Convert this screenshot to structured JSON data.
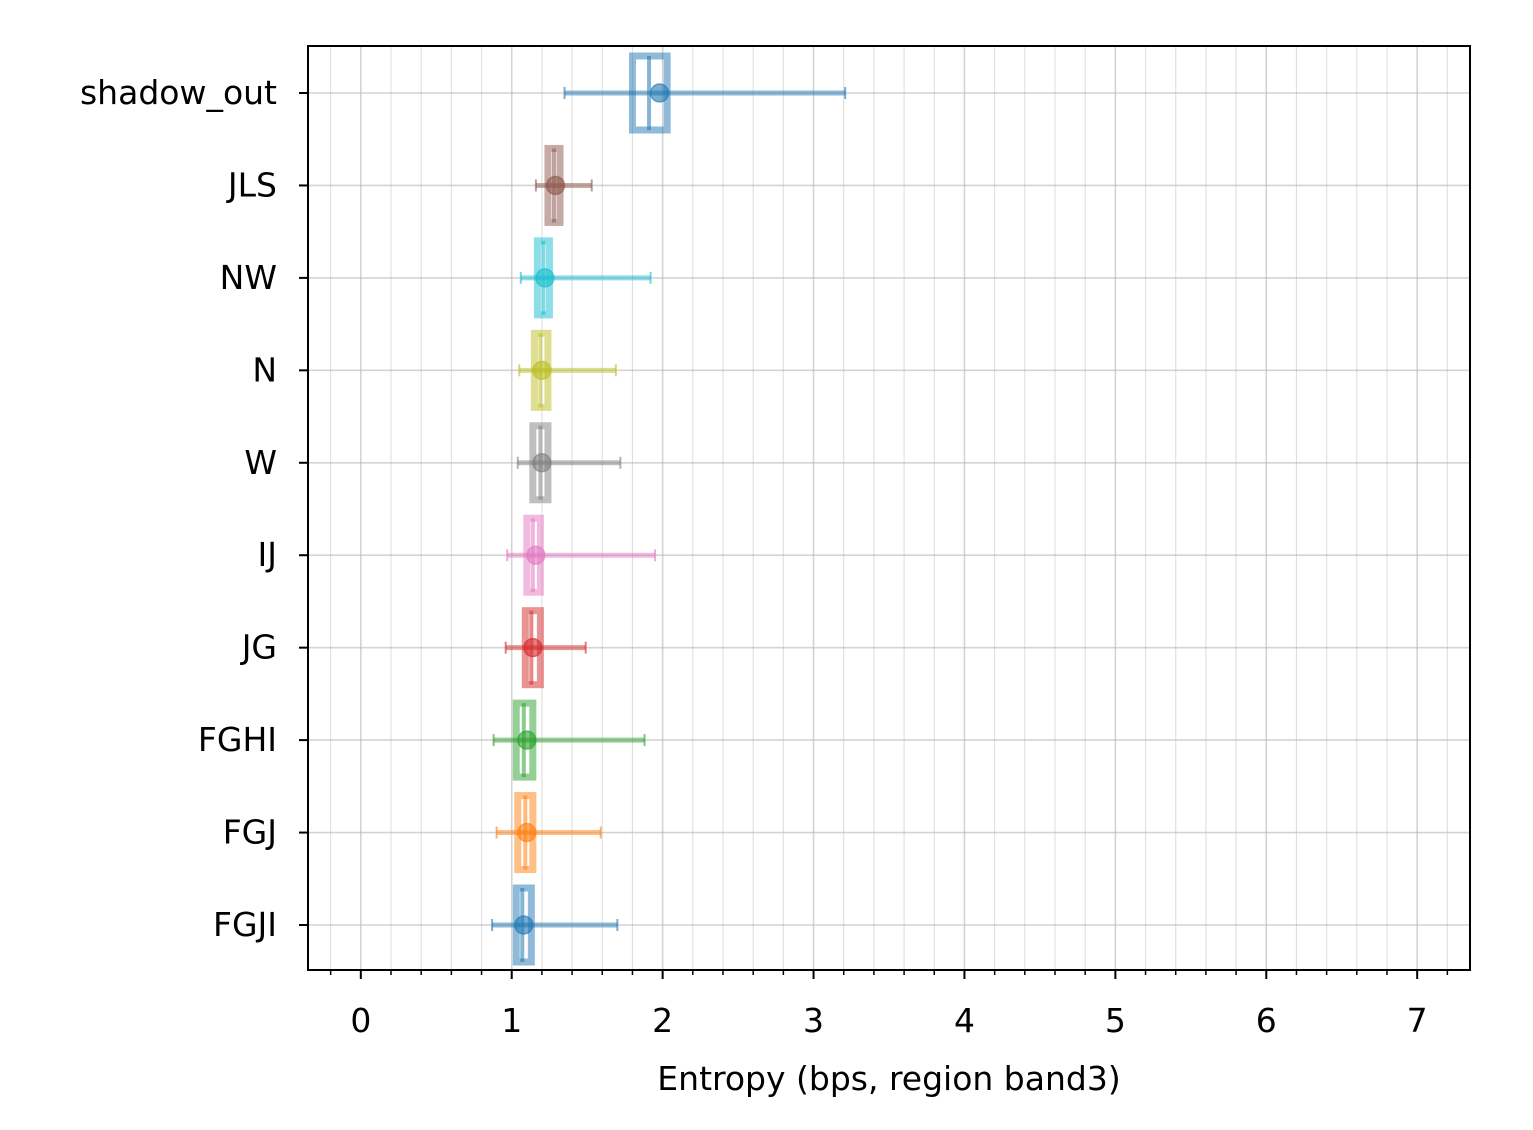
{
  "chart_data": {
    "type": "errorbar-box",
    "xlabel": "Entropy (bps, region band3)",
    "ylabel": "",
    "xlim": [
      -0.35,
      7.35
    ],
    "xticks": [
      "0",
      "1",
      "2",
      "3",
      "4",
      "5",
      "6",
      "7"
    ],
    "grid": "on (major and minor)",
    "categories": [
      "FGJI",
      "FGJ",
      "FGHI",
      "JG",
      "IJ",
      "W",
      "N",
      "NW",
      "JLS",
      "shadow_out"
    ],
    "series": [
      {
        "category": "FGJI",
        "color": "#1f77b4",
        "mean": 1.08,
        "err_low": 0.87,
        "err_high": 1.7,
        "box_low": 1.03,
        "box_high": 1.13,
        "median": 1.07
      },
      {
        "category": "FGJ",
        "color": "#ff7f0e",
        "mean": 1.1,
        "err_low": 0.9,
        "err_high": 1.59,
        "box_low": 1.04,
        "box_high": 1.14,
        "median": 1.09
      },
      {
        "category": "FGHI",
        "color": "#2ca02c",
        "mean": 1.1,
        "err_low": 0.88,
        "err_high": 1.88,
        "box_low": 1.03,
        "box_high": 1.14,
        "median": 1.08
      },
      {
        "category": "JG",
        "color": "#d62728",
        "mean": 1.14,
        "err_low": 0.96,
        "err_high": 1.49,
        "box_low": 1.09,
        "box_high": 1.19,
        "median": 1.13
      },
      {
        "category": "IJ",
        "color": "#e377c2",
        "mean": 1.16,
        "err_low": 0.97,
        "err_high": 1.95,
        "box_low": 1.1,
        "box_high": 1.19,
        "median": 1.14
      },
      {
        "category": "W",
        "color": "#7f7f7f",
        "mean": 1.2,
        "err_low": 1.04,
        "err_high": 1.72,
        "box_low": 1.14,
        "box_high": 1.24,
        "median": 1.19
      },
      {
        "category": "N",
        "color": "#bcbd22",
        "mean": 1.2,
        "err_low": 1.05,
        "err_high": 1.69,
        "box_low": 1.15,
        "box_high": 1.24,
        "median": 1.19
      },
      {
        "category": "NW",
        "color": "#17becf",
        "mean": 1.22,
        "err_low": 1.06,
        "err_high": 1.92,
        "box_low": 1.17,
        "box_high": 1.25,
        "median": 1.21
      },
      {
        "category": "JLS",
        "color": "#8c564b",
        "mean": 1.29,
        "err_low": 1.16,
        "err_high": 1.53,
        "box_low": 1.24,
        "box_high": 1.32,
        "median": 1.28
      },
      {
        "category": "shadow_out",
        "color": "#1f77b4",
        "mean": 1.98,
        "err_low": 1.35,
        "err_high": 3.21,
        "box_low": 1.8,
        "box_high": 2.03,
        "median": 1.91
      }
    ]
  }
}
